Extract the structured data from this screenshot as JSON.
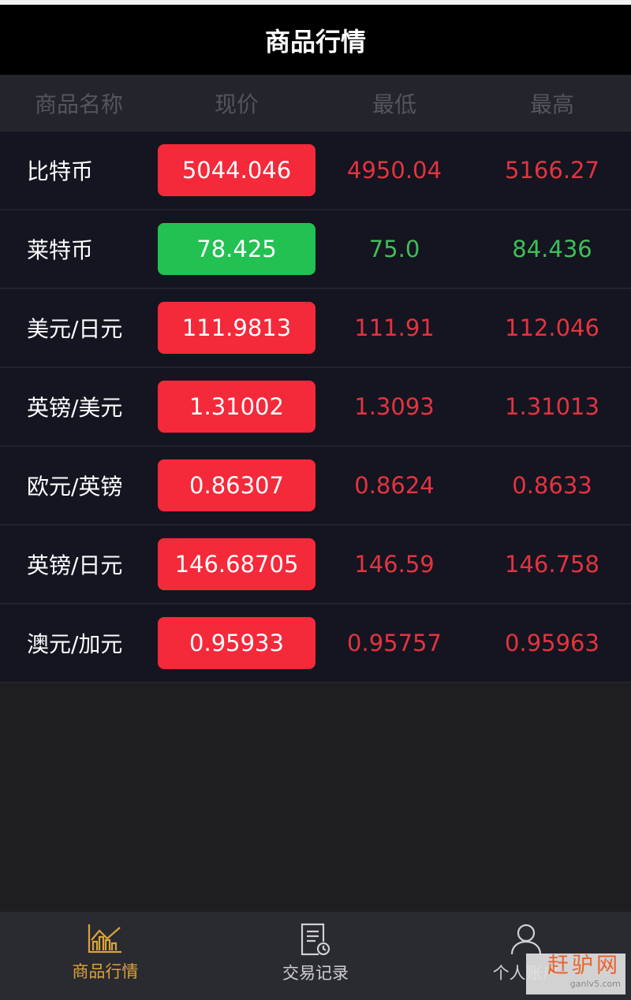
{
  "header": {
    "title": "商品行情"
  },
  "columns": [
    "商品名称",
    "现价",
    "最低",
    "最高"
  ],
  "colors": {
    "up": "#f4293a",
    "down": "#22c152",
    "up_text": "#e23440",
    "down_text": "#3fbf57",
    "accent": "#d9a43a"
  },
  "rows": [
    {
      "name": "比特币",
      "price": "5044.046",
      "low": "4950.04",
      "high": "5166.27",
      "trend": "up"
    },
    {
      "name": "莱特币",
      "price": "78.425",
      "low": "75.0",
      "high": "84.436",
      "trend": "down"
    },
    {
      "name": "美元/日元",
      "price": "111.9813",
      "low": "111.91",
      "high": "112.046",
      "trend": "up"
    },
    {
      "name": "英镑/美元",
      "price": "1.31002",
      "low": "1.3093",
      "high": "1.31013",
      "trend": "up"
    },
    {
      "name": "欧元/英镑",
      "price": "0.86307",
      "low": "0.8624",
      "high": "0.8633",
      "trend": "up"
    },
    {
      "name": "英镑/日元",
      "price": "146.68705",
      "low": "146.59",
      "high": "146.758",
      "trend": "up"
    },
    {
      "name": "澳元/加元",
      "price": "0.95933",
      "low": "0.95757",
      "high": "0.95963",
      "trend": "up"
    }
  ],
  "nav": [
    {
      "label": "商品行情",
      "icon": "chart-icon",
      "active": true
    },
    {
      "label": "交易记录",
      "icon": "document-clock-icon",
      "active": false
    },
    {
      "label": "个人账户",
      "icon": "user-icon",
      "active": false
    }
  ],
  "watermark": {
    "text": "赶驴网",
    "url": "ganlv5.com"
  }
}
